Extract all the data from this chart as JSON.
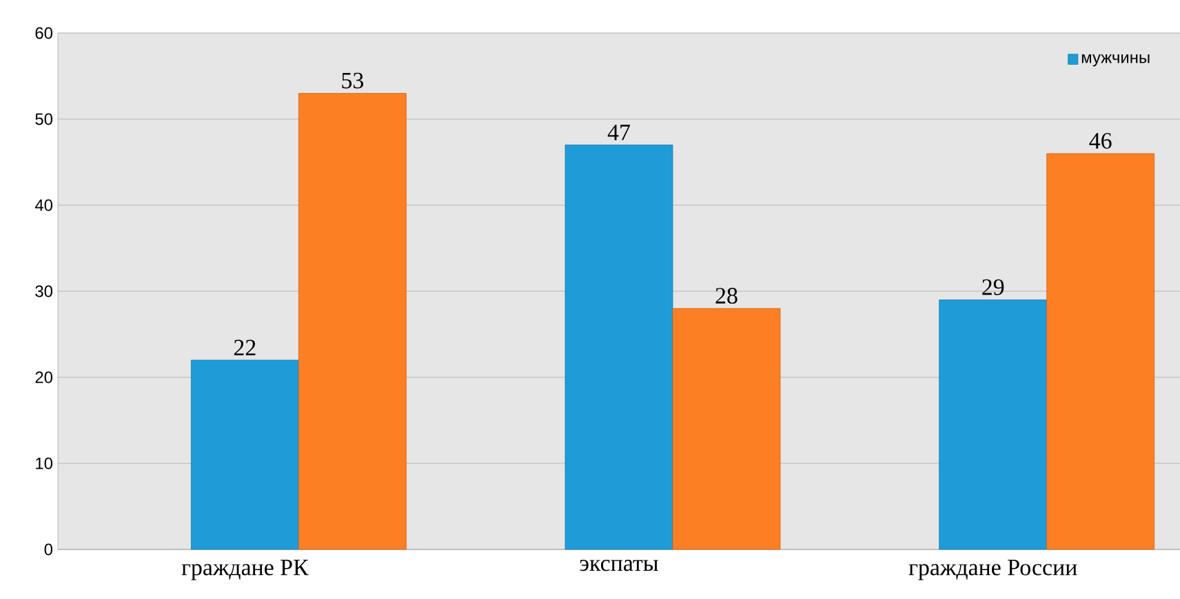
{
  "chart_data": {
    "type": "bar",
    "categories": [
      "граждане РК",
      "экспаты",
      "граждане России"
    ],
    "series": [
      {
        "name": "мужчины",
        "color": "#1f9bd7",
        "values": [
          22,
          47,
          29
        ]
      },
      {
        "color": "#fd7f23",
        "values": [
          53,
          28,
          46
        ]
      }
    ],
    "ylim": [
      0,
      60
    ],
    "yticks": [
      0,
      10,
      20,
      30,
      40,
      50,
      60
    ],
    "grid": "y",
    "legend": "top right",
    "data_labels": true
  }
}
